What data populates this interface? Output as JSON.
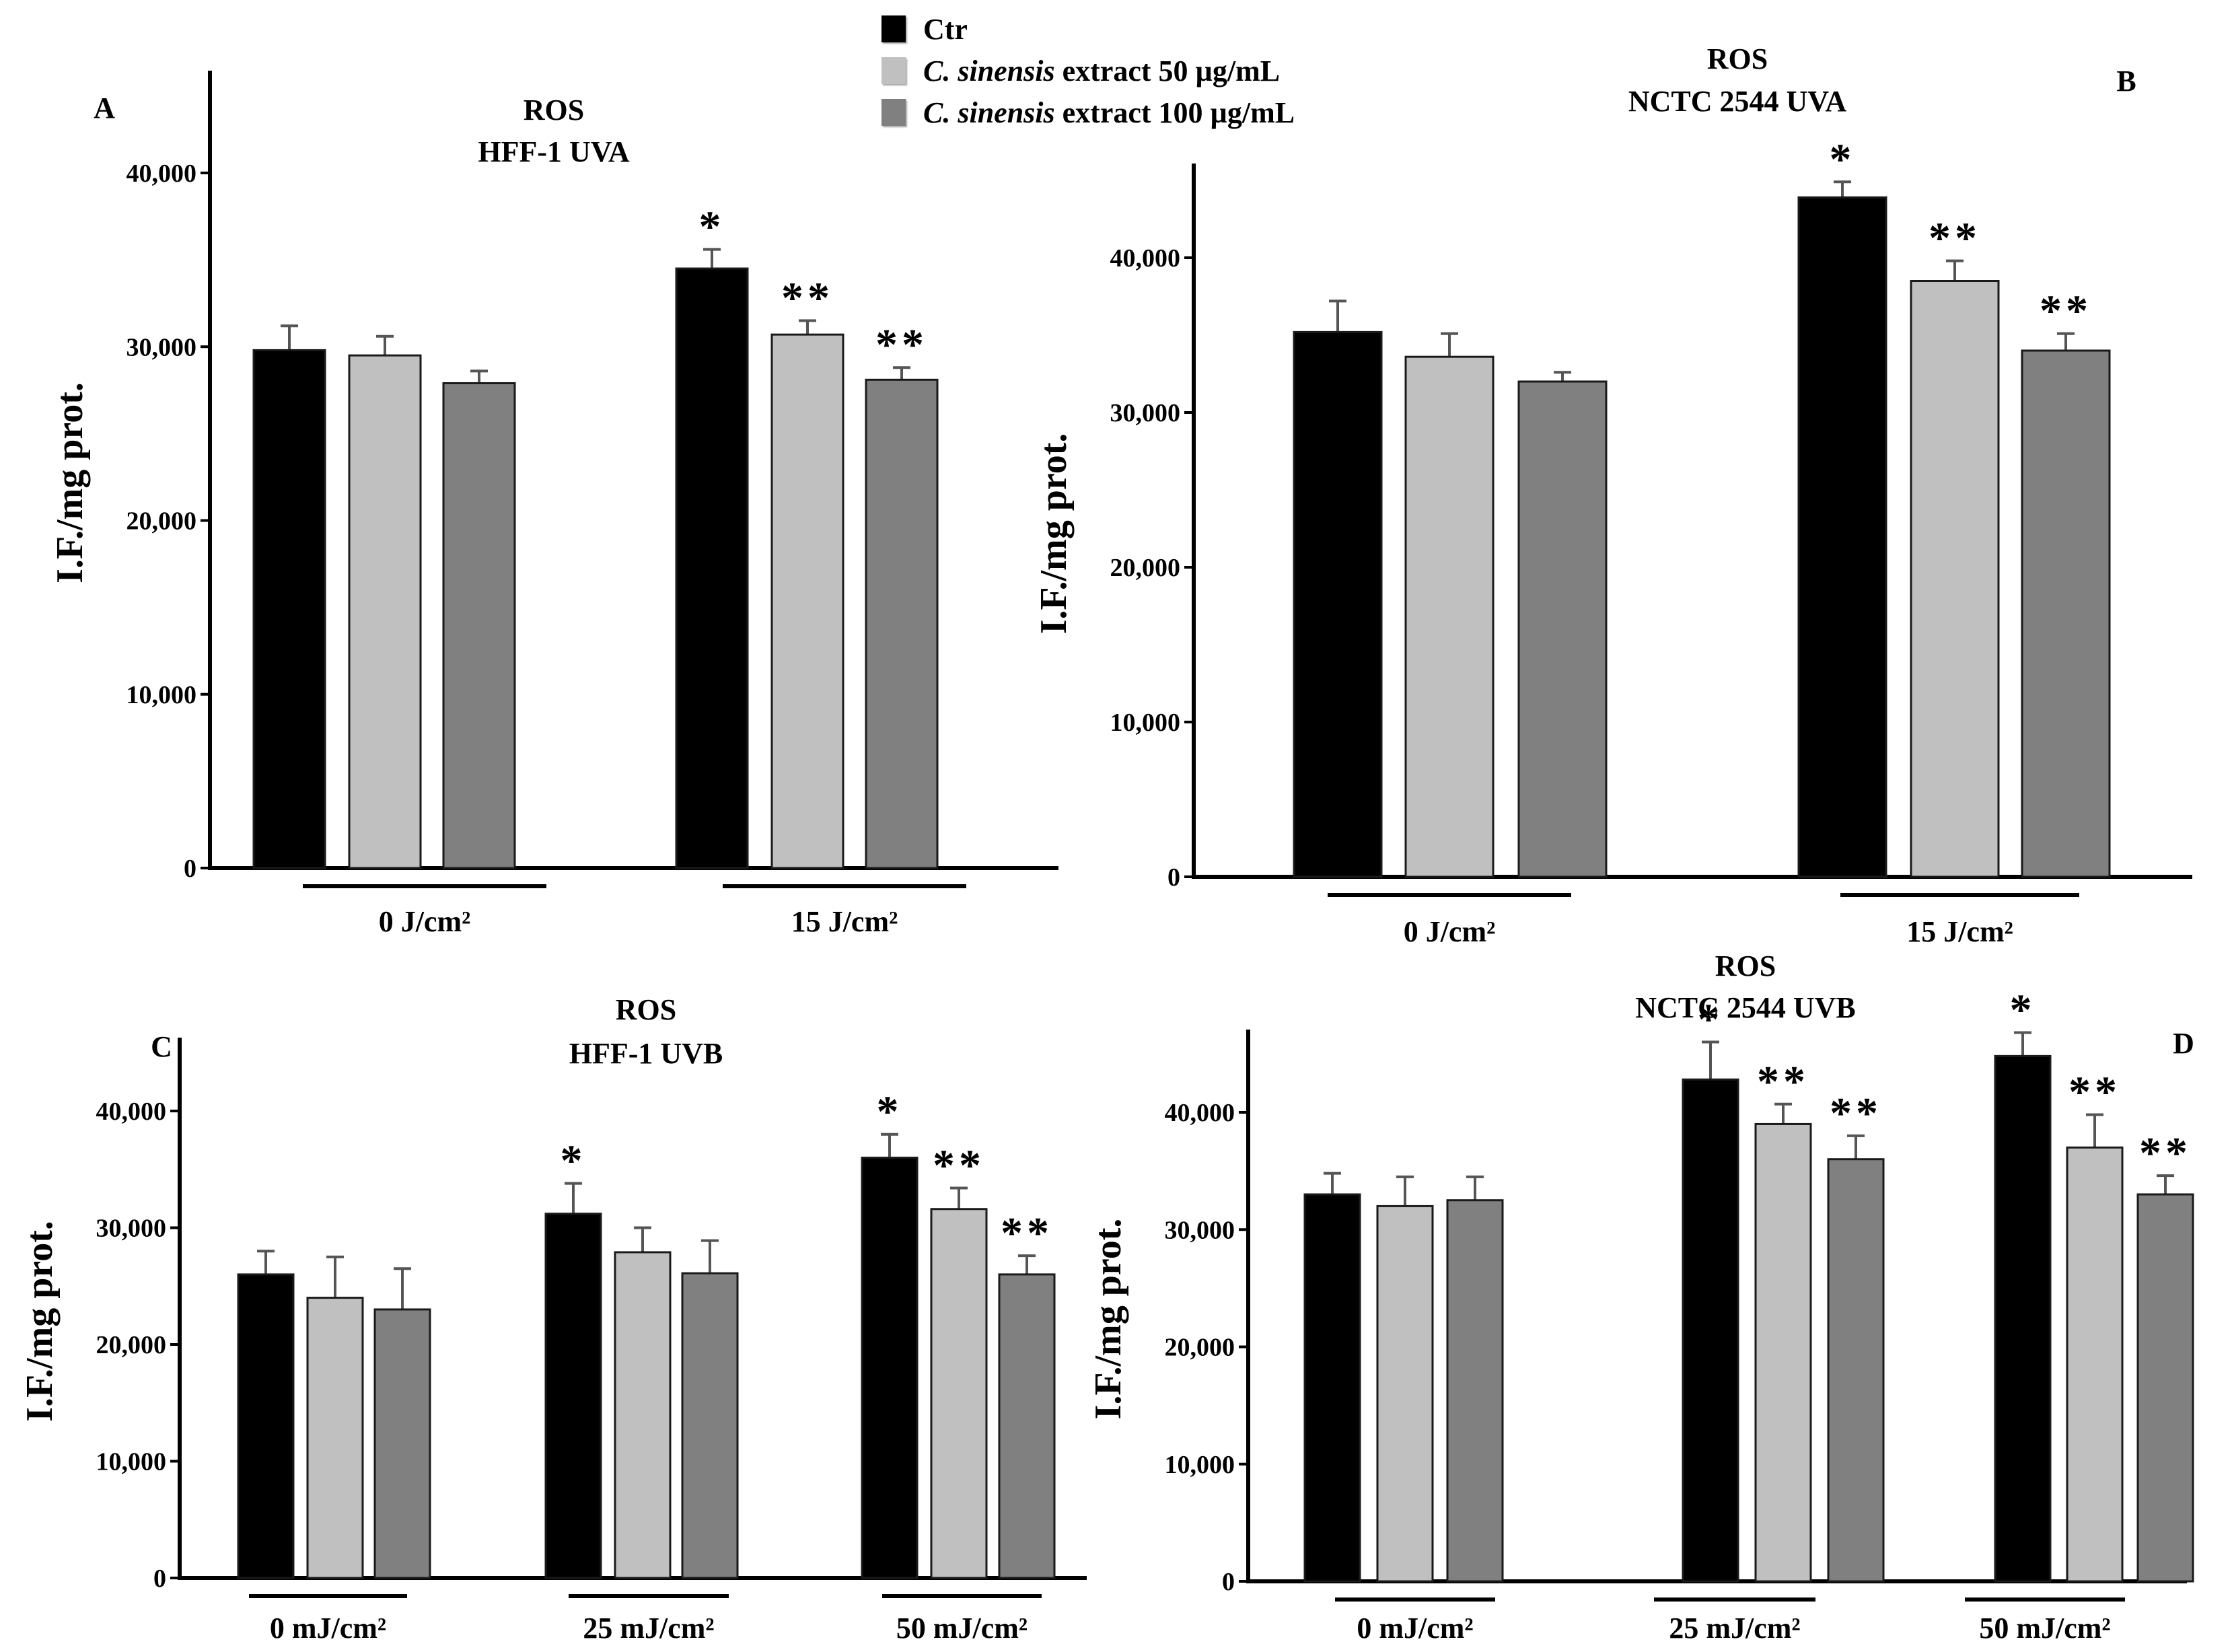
{
  "colors": {
    "ctr": "#000000",
    "ext50": "#c0c0c0",
    "ext100": "#808080"
  },
  "legend": {
    "items": [
      {
        "italic": "",
        "text": "Ctr",
        "color": "#000000"
      },
      {
        "italic": "C. sinensis",
        "text": " extract 50 µg/mL",
        "color": "#c0c0c0"
      },
      {
        "italic": "C. sinensis",
        "text": " extract 100 µg/mL",
        "color": "#808080"
      }
    ]
  },
  "chart_data": [
    {
      "panel": "A",
      "type": "bar",
      "title": [
        "ROS",
        "HFF-1 UVA"
      ],
      "ylabel": "I.F./mg prot.",
      "xlabel": "",
      "ylim": [
        0,
        40000
      ],
      "yticks": [
        0,
        10000,
        20000,
        30000,
        40000
      ],
      "ytick_labels": [
        "0",
        "10,000",
        "20,000",
        "30,000",
        "40,000"
      ],
      "grid": false,
      "categories": [
        "0 J/cm²",
        "15 J/cm²"
      ],
      "series": [
        {
          "name": "Ctr",
          "values": [
            29800,
            34500
          ],
          "errors": [
            1400,
            1100
          ],
          "marks": [
            "",
            "*"
          ]
        },
        {
          "name": "C. sinensis extract 50 µg/mL",
          "values": [
            29500,
            30700
          ],
          "errors": [
            1100,
            800
          ],
          "marks": [
            "",
            "**"
          ]
        },
        {
          "name": "C. sinensis extract 100 µg/mL",
          "values": [
            27900,
            28100
          ],
          "errors": [
            700,
            700
          ],
          "marks": [
            "",
            "**"
          ]
        }
      ]
    },
    {
      "panel": "B",
      "type": "bar",
      "title": [
        "ROS",
        "NCTC 2544 UVA"
      ],
      "ylabel": "I.F./mg prot.",
      "xlabel": "",
      "ylim": [
        0,
        40000
      ],
      "yticks": [
        0,
        10000,
        20000,
        30000,
        40000
      ],
      "ytick_labels": [
        "0",
        "10,000",
        "20,000",
        "30,000",
        "40,000"
      ],
      "grid": false,
      "categories": [
        "0 J/cm²",
        "15 J/cm²"
      ],
      "series": [
        {
          "name": "Ctr",
          "values": [
            35200,
            43900
          ],
          "errors": [
            2000,
            1000
          ],
          "marks": [
            "",
            "*"
          ]
        },
        {
          "name": "C. sinensis extract 50 µg/mL",
          "values": [
            33600,
            38500
          ],
          "errors": [
            1500,
            1300
          ],
          "marks": [
            "",
            "**"
          ]
        },
        {
          "name": "C. sinensis extract 100 µg/mL",
          "values": [
            32000,
            34000
          ],
          "errors": [
            600,
            1100
          ],
          "marks": [
            "",
            "**"
          ]
        }
      ]
    },
    {
      "panel": "C",
      "type": "bar",
      "title": [
        "ROS",
        "HFF-1 UVB"
      ],
      "ylabel": "I.F./mg prot.",
      "xlabel": "",
      "ylim": [
        0,
        40000
      ],
      "yticks": [
        0,
        10000,
        20000,
        30000,
        40000
      ],
      "ytick_labels": [
        "0",
        "10,000",
        "20,000",
        "30,000",
        "40,000"
      ],
      "grid": false,
      "categories": [
        "0 mJ/cm²",
        "25 mJ/cm²",
        "50 mJ/cm²"
      ],
      "series": [
        {
          "name": "Ctr",
          "values": [
            26000,
            31200,
            36000
          ],
          "errors": [
            2000,
            2600,
            2000
          ],
          "marks": [
            "",
            "*",
            "*"
          ]
        },
        {
          "name": "C. sinensis extract 50 µg/mL",
          "values": [
            24000,
            27900,
            31600
          ],
          "errors": [
            3500,
            2100,
            1800
          ],
          "marks": [
            "",
            "",
            "**"
          ]
        },
        {
          "name": "C. sinensis extract 100 µg/mL",
          "values": [
            23000,
            26100,
            26000
          ],
          "errors": [
            3500,
            2800,
            1600
          ],
          "marks": [
            "",
            "",
            "**"
          ]
        }
      ]
    },
    {
      "panel": "D",
      "type": "bar",
      "title": [
        "ROS",
        "NCTC 2544 UVB"
      ],
      "ylabel": "I.F./mg prot.",
      "xlabel": "",
      "ylim": [
        0,
        40000
      ],
      "yticks": [
        0,
        10000,
        20000,
        30000,
        40000
      ],
      "ytick_labels": [
        "0",
        "10,000",
        "20,000",
        "30,000",
        "40,000"
      ],
      "grid": false,
      "categories": [
        "0 mJ/cm²",
        "25 mJ/cm²",
        "50 mJ/cm²"
      ],
      "series": [
        {
          "name": "Ctr",
          "values": [
            33000,
            42800,
            44800
          ],
          "errors": [
            1800,
            3200,
            2000
          ],
          "marks": [
            "",
            "*",
            "*"
          ]
        },
        {
          "name": "C. sinensis extract 50 µg/mL",
          "values": [
            32000,
            39000,
            37000
          ],
          "errors": [
            2500,
            1700,
            2800
          ],
          "marks": [
            "",
            "**",
            "**"
          ]
        },
        {
          "name": "C. sinensis extract 100 µg/mL",
          "values": [
            32500,
            36000,
            33000
          ],
          "errors": [
            2000,
            2000,
            1600
          ],
          "marks": [
            "",
            "**",
            "**"
          ]
        }
      ]
    }
  ]
}
